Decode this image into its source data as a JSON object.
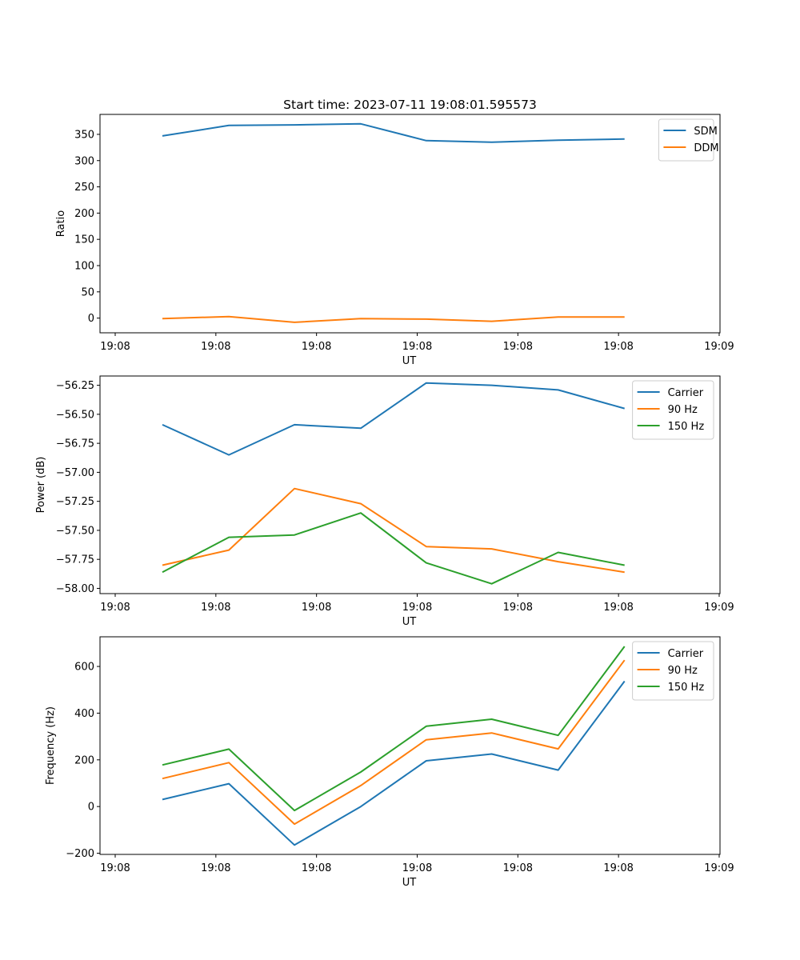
{
  "chart_data": [
    {
      "type": "line",
      "title": "Start time: 2023-07-11 19:08:01.595573",
      "xlabel": "UT",
      "ylabel": "Ratio",
      "x_tick_labels": [
        "19:08",
        "19:08",
        "19:08",
        "19:08",
        "19:08",
        "19:08",
        "19:09"
      ],
      "x": [
        0.469,
        1.129,
        1.781,
        2.44,
        3.09,
        3.74,
        4.4,
        5.06
      ],
      "xlim": [
        -0.15,
        6.0
      ],
      "y_ticks": [
        0,
        50,
        100,
        150,
        200,
        250,
        300,
        350
      ],
      "y_tick_labels": [
        "0",
        "50",
        "100",
        "150",
        "200",
        "250",
        "300",
        "350"
      ],
      "ylim": [
        -28,
        388
      ],
      "grid": false,
      "legend_position": "top-right",
      "series": [
        {
          "name": "SDM",
          "color": "#1f77b4",
          "values": [
            347,
            367,
            368,
            370,
            338,
            335,
            339,
            341
          ]
        },
        {
          "name": "DDM",
          "color": "#ff7f0e",
          "values": [
            -1,
            3,
            -8,
            -1,
            -2,
            -6,
            2,
            2
          ]
        }
      ]
    },
    {
      "type": "line",
      "title": "",
      "xlabel": "UT",
      "ylabel": "Power (dB)",
      "x_tick_labels": [
        "19:08",
        "19:08",
        "19:08",
        "19:08",
        "19:08",
        "19:08",
        "19:09"
      ],
      "x": [
        0.469,
        1.129,
        1.781,
        2.44,
        3.09,
        3.74,
        4.4,
        5.06
      ],
      "xlim": [
        -0.15,
        6.0
      ],
      "y_ticks": [
        -58.0,
        -57.75,
        -57.5,
        -57.25,
        -57.0,
        -56.75,
        -56.5,
        -56.25
      ],
      "y_tick_labels": [
        "−58.00",
        "−57.75",
        "−57.50",
        "−57.25",
        "−57.00",
        "−56.75",
        "−56.50",
        "−56.25"
      ],
      "ylim": [
        -58.045,
        -56.17
      ],
      "grid": false,
      "legend_position": "top-right",
      "series": [
        {
          "name": "Carrier",
          "color": "#1f77b4",
          "values": [
            -56.59,
            -56.85,
            -56.59,
            -56.62,
            -56.23,
            -56.25,
            -56.29,
            -56.45
          ]
        },
        {
          "name": "90 Hz",
          "color": "#ff7f0e",
          "values": [
            -57.8,
            -57.67,
            -57.14,
            -57.27,
            -57.64,
            -57.66,
            -57.77,
            -57.86
          ]
        },
        {
          "name": "150 Hz",
          "color": "#2ca02c",
          "values": [
            -57.86,
            -57.56,
            -57.54,
            -57.35,
            -57.78,
            -57.96,
            -57.69,
            -57.8
          ]
        }
      ]
    },
    {
      "type": "line",
      "title": "",
      "xlabel": "UT",
      "ylabel": "Frequency (Hz)",
      "x_tick_labels": [
        "19:08",
        "19:08",
        "19:08",
        "19:08",
        "19:08",
        "19:08",
        "19:09"
      ],
      "x": [
        0.469,
        1.129,
        1.781,
        2.44,
        3.09,
        3.74,
        4.4,
        5.06
      ],
      "xlim": [
        -0.15,
        6.0
      ],
      "y_ticks": [
        -200,
        0,
        200,
        400,
        600
      ],
      "y_tick_labels": [
        "−200",
        "0",
        "200",
        "400",
        "600"
      ],
      "ylim": [
        -205,
        727
      ],
      "grid": false,
      "legend_position": "top-right",
      "series": [
        {
          "name": "Carrier",
          "color": "#1f77b4",
          "values": [
            30,
            98,
            -165,
            0,
            196,
            225,
            156,
            537
          ]
        },
        {
          "name": "90 Hz",
          "color": "#ff7f0e",
          "values": [
            120,
            188,
            -75,
            90,
            286,
            315,
            247,
            627
          ]
        },
        {
          "name": "150 Hz",
          "color": "#2ca02c",
          "values": [
            178,
            246,
            -17,
            148,
            344,
            374,
            305,
            686
          ]
        }
      ]
    }
  ]
}
